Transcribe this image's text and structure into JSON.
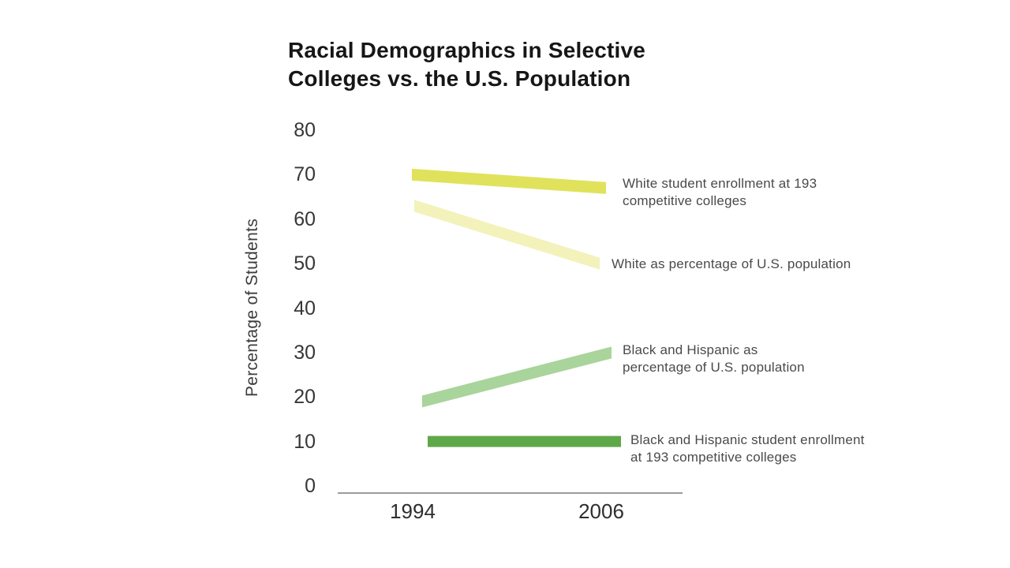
{
  "chart_data": {
    "type": "line",
    "title_lines": [
      "Racial Demographics in Selective",
      "Colleges vs. the U.S. Population"
    ],
    "ylabel": "Percentage of Students",
    "xlabel": "",
    "x": [
      1994,
      2006
    ],
    "x_tick_labels": [
      "1994",
      "2006"
    ],
    "y_ticks": [
      80,
      70,
      60,
      50,
      40,
      30,
      20,
      10,
      0
    ],
    "ylim": [
      0,
      80
    ],
    "grid": false,
    "legend_position": "right-annotations",
    "axis_color": "#9b9b9b",
    "series": [
      {
        "name": "white-enrollment",
        "label_lines": [
          "White student enrollment at 193",
          "competitive colleges"
        ],
        "values": [
          70,
          67
        ],
        "color": "#e0e25b"
      },
      {
        "name": "white-us-population",
        "label_lines": [
          "White as percentage of U.S. population"
        ],
        "values": [
          63,
          50
        ],
        "color": "#f2f2ba"
      },
      {
        "name": "black-hispanic-us-population",
        "label_lines": [
          "Black and Hispanic as",
          "percentage of U.S. population"
        ],
        "values": [
          19,
          30
        ],
        "color": "#a9d49b"
      },
      {
        "name": "black-hispanic-enrollment",
        "label_lines": [
          "Black and Hispanic student enrollment",
          "at 193 competitive colleges"
        ],
        "values": [
          10,
          10
        ],
        "color": "#5fa849"
      }
    ]
  }
}
